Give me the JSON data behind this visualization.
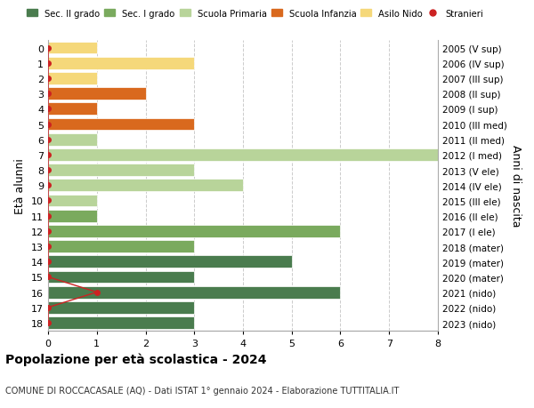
{
  "ages": [
    18,
    17,
    16,
    15,
    14,
    13,
    12,
    11,
    10,
    9,
    8,
    7,
    6,
    5,
    4,
    3,
    2,
    1,
    0
  ],
  "right_labels": [
    "2005 (V sup)",
    "2006 (IV sup)",
    "2007 (III sup)",
    "2008 (II sup)",
    "2009 (I sup)",
    "2010 (III med)",
    "2011 (II med)",
    "2012 (I med)",
    "2013 (V ele)",
    "2014 (IV ele)",
    "2015 (III ele)",
    "2016 (II ele)",
    "2017 (I ele)",
    "2018 (mater)",
    "2019 (mater)",
    "2020 (mater)",
    "2021 (nido)",
    "2022 (nido)",
    "2023 (nido)"
  ],
  "bar_values": [
    3,
    3,
    6,
    3,
    5,
    3,
    6,
    1,
    1,
    4,
    3,
    8,
    1,
    3,
    1,
    2,
    1,
    3,
    1
  ],
  "bar_colors": [
    "#4a7c4e",
    "#4a7c4e",
    "#4a7c4e",
    "#4a7c4e",
    "#4a7c4e",
    "#7aaa5e",
    "#7aaa5e",
    "#7aaa5e",
    "#b8d49a",
    "#b8d49a",
    "#b8d49a",
    "#b8d49a",
    "#b8d49a",
    "#d9691e",
    "#d9691e",
    "#d9691e",
    "#f5d87a",
    "#f5d87a",
    "#f5d87a"
  ],
  "stranieri_x": [
    0,
    0,
    1,
    0,
    0,
    0,
    0,
    0,
    0,
    0,
    0,
    0,
    0,
    0,
    0,
    0,
    0,
    0,
    0
  ],
  "legend_labels": [
    "Sec. II grado",
    "Sec. I grado",
    "Scuola Primaria",
    "Scuola Infanzia",
    "Asilo Nido",
    "Stranieri"
  ],
  "legend_colors": [
    "#4a7c4e",
    "#7aaa5e",
    "#b8d49a",
    "#d9691e",
    "#f5d87a",
    "#cc2222"
  ],
  "title": "Popolazione per età scolastica - 2024",
  "subtitle": "COMUNE DI ROCCACASALE (AQ) - Dati ISTAT 1° gennaio 2024 - Elaborazione TUTTITALIA.IT",
  "ylabel": "Età alunni",
  "right_ylabel": "Anni di nascita",
  "xlim": [
    0,
    8
  ],
  "xticks": [
    0,
    1,
    2,
    3,
    4,
    5,
    6,
    7,
    8
  ],
  "stranieri_color": "#cc2222",
  "background_color": "#ffffff",
  "grid_color": "#cccccc"
}
